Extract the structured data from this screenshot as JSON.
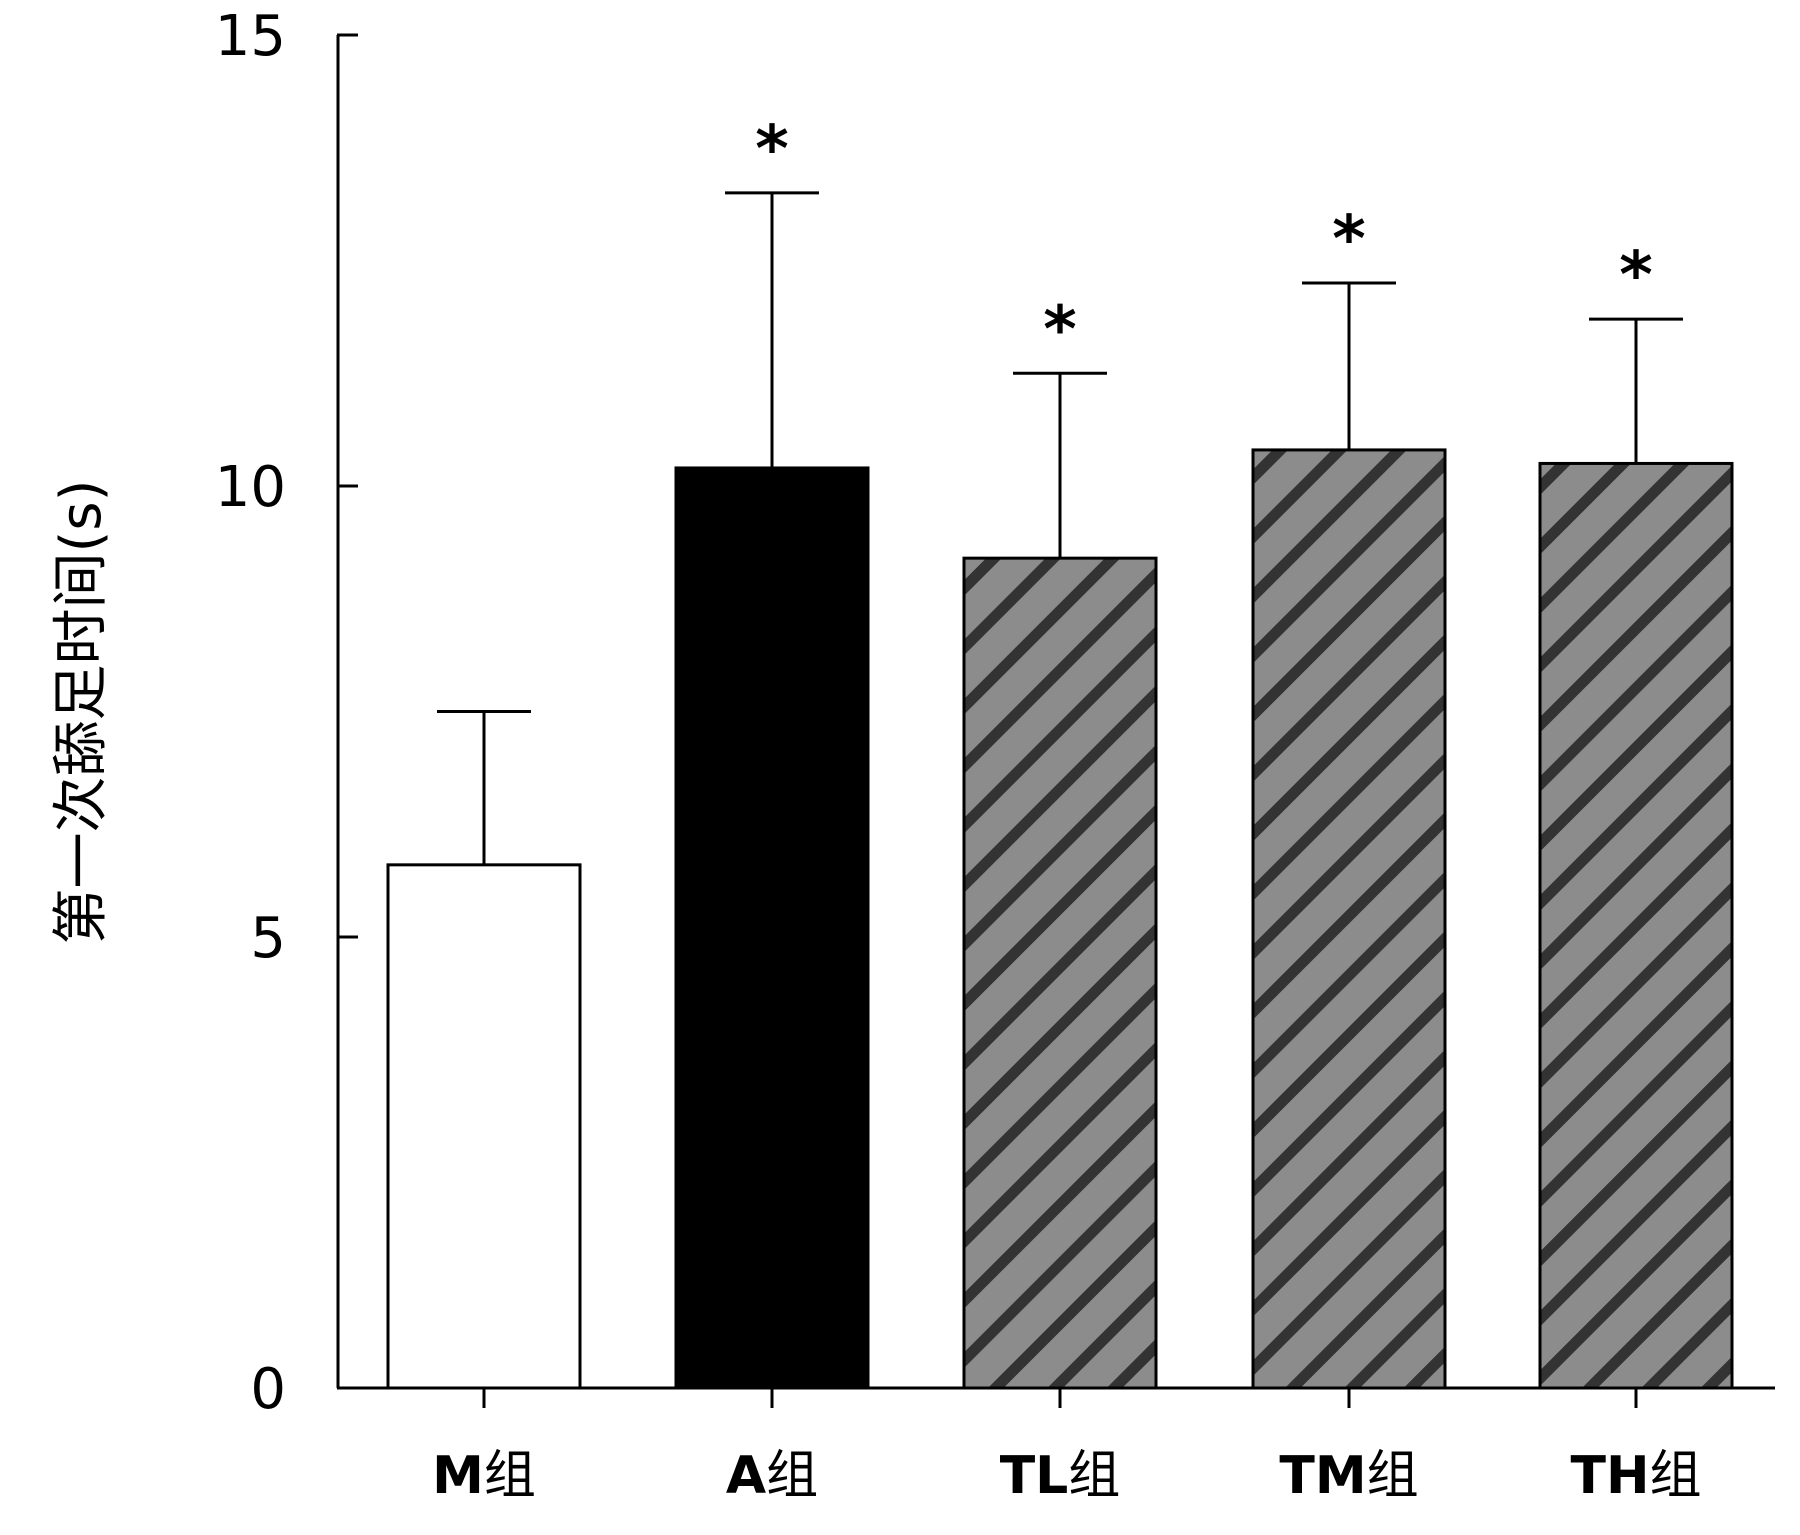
{
  "chart_data": {
    "type": "bar",
    "title": "",
    "xlabel": "",
    "ylabel": "第一次舔足时间(s)",
    "ylim": [
      0,
      15
    ],
    "yticks": [
      0,
      5,
      10,
      15
    ],
    "grid": false,
    "categories": [
      {
        "code": "M",
        "suffix": "组"
      },
      {
        "code": "A",
        "suffix": "组"
      },
      {
        "code": "TL",
        "suffix": "组"
      },
      {
        "code": "TM",
        "suffix": "组"
      },
      {
        "code": "TH",
        "suffix": "组"
      }
    ],
    "values": [
      5.8,
      10.2,
      9.2,
      10.4,
      10.25
    ],
    "errors": [
      1.7,
      3.05,
      2.05,
      1.85,
      1.6
    ],
    "significance": [
      "",
      "*",
      "*",
      "*",
      "*"
    ],
    "fills": [
      {
        "pattern": "solid",
        "color": "#ffffff"
      },
      {
        "pattern": "solid",
        "color": "#000000"
      },
      {
        "pattern": "hatch",
        "color": "#8c8c8c",
        "stripe": "#333333"
      },
      {
        "pattern": "hatch",
        "color": "#8c8c8c",
        "stripe": "#333333"
      },
      {
        "pattern": "hatch",
        "color": "#8c8c8c",
        "stripe": "#333333"
      }
    ]
  }
}
